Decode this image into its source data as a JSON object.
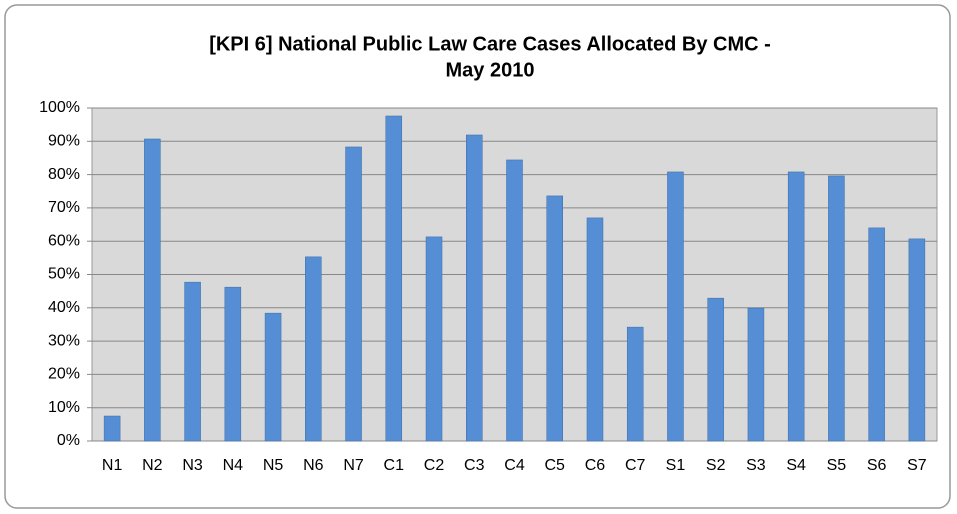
{
  "chart_data": {
    "type": "bar",
    "title": [
      "[KPI 6] National Public Law Care Cases Allocated By CMC -",
      "May 2010"
    ],
    "categories": [
      "N1",
      "N2",
      "N3",
      "N4",
      "N5",
      "N6",
      "N7",
      "C1",
      "C2",
      "C3",
      "C4",
      "C5",
      "C6",
      "C7",
      "S1",
      "S2",
      "S3",
      "S4",
      "S5",
      "S6",
      "S7"
    ],
    "values": [
      7.5,
      90.7,
      47.7,
      46.2,
      38.4,
      55.3,
      88.3,
      97.6,
      61.3,
      91.9,
      84.4,
      73.6,
      67.0,
      34.2,
      80.8,
      42.9,
      39.9,
      80.8,
      79.6,
      64.0,
      60.7
    ],
    "color": "#558ed5",
    "ylim": [
      0,
      100
    ],
    "yticks": [
      {
        "value": 0,
        "label": "0%"
      },
      {
        "value": 10,
        "label": "10%"
      },
      {
        "value": 20,
        "label": "20%"
      },
      {
        "value": 30,
        "label": "30%"
      },
      {
        "value": 40,
        "label": "40%"
      },
      {
        "value": 50,
        "label": "50%"
      },
      {
        "value": 60,
        "label": "60%"
      },
      {
        "value": 70,
        "label": "70%"
      },
      {
        "value": 80,
        "label": "80%"
      },
      {
        "value": 90,
        "label": "90%"
      },
      {
        "value": 100,
        "label": "100%"
      }
    ],
    "grid": true
  }
}
